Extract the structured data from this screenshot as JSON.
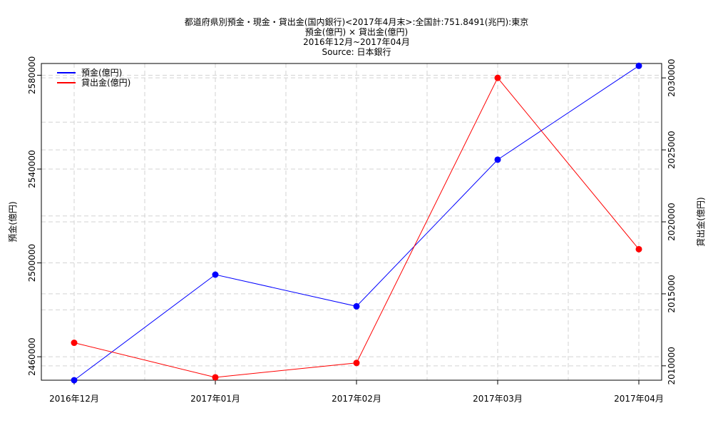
{
  "chart_data": {
    "type": "line",
    "title": "都道府県別預金・現金・貸出金(国内銀行)<2017年4月末>:全国計:751.8491(兆円):東京",
    "subtitle": "預金(億円) × 貸出金(億円)",
    "period": "2016年12月~2017年04月",
    "source": "Source: 日本銀行",
    "categories": [
      "2016年12月",
      "2017年01月",
      "2017年02月",
      "2017年03月",
      "2017年04月"
    ],
    "y_left": {
      "label": "預金(億円)",
      "ylim": [
        2450000,
        2585000
      ],
      "ticks": [
        2460000,
        2500000,
        2540000,
        2580000
      ],
      "tick_labels": [
        "2460000",
        "2500000",
        "2540000",
        "2580000"
      ]
    },
    "y_right": {
      "label": "貸出金(億円)",
      "ylim": [
        2009000,
        2031000
      ],
      "ticks": [
        2010000,
        2015000,
        2020000,
        2025000,
        2030000
      ],
      "tick_labels": [
        "2010000",
        "2015000",
        "2020000",
        "2025000",
        "2030000"
      ]
    },
    "series": [
      {
        "name": "預金(億円)",
        "axis": "left",
        "color": "#0000ff",
        "values": [
          2450000,
          2495000,
          2481500,
          2544000,
          2584000
        ]
      },
      {
        "name": "貸出金(億円)",
        "axis": "right",
        "color": "#ff0000",
        "values": [
          2011600,
          2009200,
          2010200,
          2030000,
          2018100
        ]
      }
    ],
    "grid": true,
    "legend_position": "top-left"
  }
}
